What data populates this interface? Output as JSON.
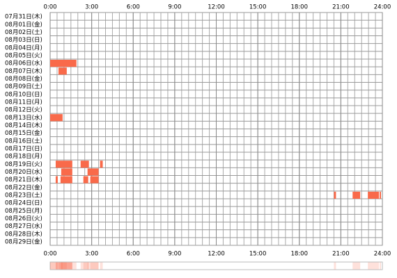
{
  "chart_data": {
    "type": "timeline",
    "rows": [
      "07月31日(木)",
      "08月01日(金)",
      "08月02日(土)",
      "08月03日(日)",
      "08月04日(月)",
      "08月05日(火)",
      "08月06日(水)",
      "08月07日(木)",
      "08月08日(金)",
      "08月09日(土)",
      "08月10日(日)",
      "08月11日(月)",
      "08月12日(火)",
      "08月13日(水)",
      "08月14日(木)",
      "08月15日(金)",
      "08月16日(土)",
      "08月17日(日)",
      "08月18日(月)",
      "08月19日(火)",
      "08月20日(水)",
      "08月21日(木)",
      "08月22日(金)",
      "08月23日(土)",
      "08月24日(日)",
      "08月25日(月)",
      "08月26日(火)",
      "08月27日(水)",
      "08月28日(木)",
      "08月29日(金)"
    ],
    "segments": [
      {
        "row": 6,
        "start": 0.0,
        "end": 1.9
      },
      {
        "row": 7,
        "start": 0.6,
        "end": 1.2
      },
      {
        "row": 13,
        "start": 0.0,
        "end": 0.9
      },
      {
        "row": 19,
        "start": 0.4,
        "end": 1.6
      },
      {
        "row": 19,
        "start": 2.2,
        "end": 2.8
      },
      {
        "row": 19,
        "start": 3.6,
        "end": 3.8
      },
      {
        "row": 20,
        "start": 0.8,
        "end": 1.6
      },
      {
        "row": 20,
        "start": 2.7,
        "end": 3.5
      },
      {
        "row": 21,
        "start": 0.4,
        "end": 0.55
      },
      {
        "row": 21,
        "start": 0.75,
        "end": 1.6
      },
      {
        "row": 21,
        "start": 2.4,
        "end": 2.75
      },
      {
        "row": 21,
        "start": 2.9,
        "end": 3.5
      },
      {
        "row": 23,
        "start": 20.5,
        "end": 20.65
      },
      {
        "row": 23,
        "start": 21.85,
        "end": 22.4
      },
      {
        "row": 23,
        "start": 22.95,
        "end": 23.75
      },
      {
        "row": 23,
        "start": 23.8,
        "end": 23.9
      }
    ],
    "color": "#f96a4a",
    "xlim": [
      0,
      24
    ],
    "xticks": [
      {
        "value": 0,
        "label": "0:00"
      },
      {
        "value": 3,
        "label": "3:00"
      },
      {
        "value": 6,
        "label": "6:00"
      },
      {
        "value": 9,
        "label": "9:00"
      },
      {
        "value": 12,
        "label": "12:00"
      },
      {
        "value": 15,
        "label": "15:00"
      },
      {
        "value": 18,
        "label": "18:00"
      },
      {
        "value": 21,
        "label": "21:00"
      },
      {
        "value": 24,
        "label": "24:00"
      }
    ],
    "grid": true
  }
}
